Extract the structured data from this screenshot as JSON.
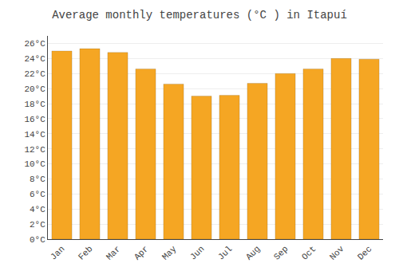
{
  "chart_data": {
    "type": "bar",
    "title": "Average monthly temperatures (°C ) in Itapuí",
    "categories": [
      "Jan",
      "Feb",
      "Mar",
      "Apr",
      "May",
      "Jun",
      "Jul",
      "Aug",
      "Sep",
      "Oct",
      "Nov",
      "Dec"
    ],
    "values": [
      25.0,
      25.3,
      24.8,
      22.6,
      20.6,
      19.0,
      19.1,
      20.7,
      22.0,
      22.6,
      24.0,
      23.9
    ],
    "color": "#F5A623",
    "ylim": [
      0,
      27
    ],
    "yticks": [
      {
        "value": 0,
        "label": "0°C"
      },
      {
        "value": 2,
        "label": "2°C"
      },
      {
        "value": 4,
        "label": "4°C"
      },
      {
        "value": 6,
        "label": "6°C"
      },
      {
        "value": 8,
        "label": "8°C"
      },
      {
        "value": 10,
        "label": "10°C"
      },
      {
        "value": 12,
        "label": "12°C"
      },
      {
        "value": 14,
        "label": "14°C"
      },
      {
        "value": 16,
        "label": "16°C"
      },
      {
        "value": 18,
        "label": "18°C"
      },
      {
        "value": 20,
        "label": "20°C"
      },
      {
        "value": 22,
        "label": "22°C"
      },
      {
        "value": 24,
        "label": "24°C"
      },
      {
        "value": 26,
        "label": "26°C"
      }
    ],
    "grid": true
  }
}
